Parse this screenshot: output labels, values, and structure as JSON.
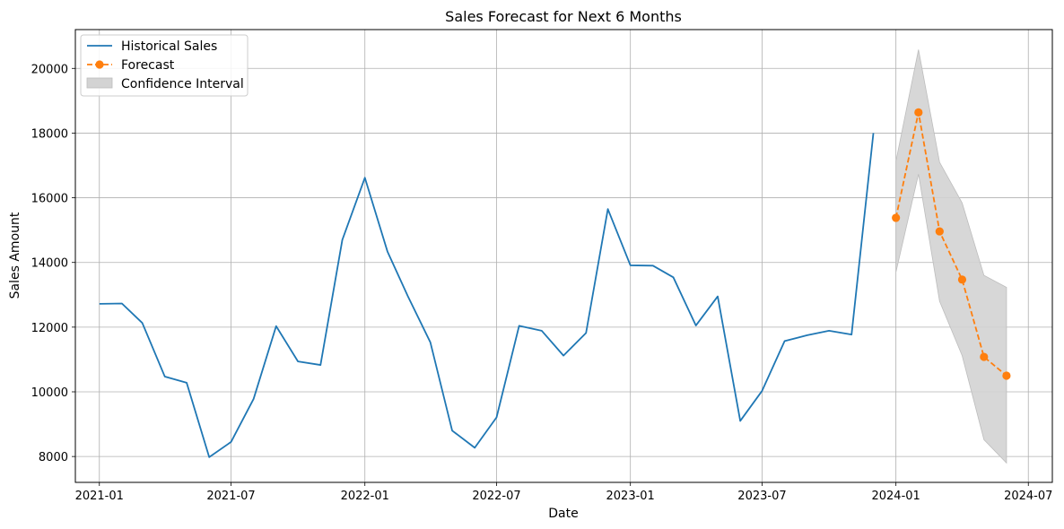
{
  "chart_data": {
    "type": "line",
    "title": "Sales Forecast for Next 6 Months",
    "xlabel": "Date",
    "ylabel": "Sales Amount",
    "ylim": [
      7200,
      21200
    ],
    "xlim": [
      "2020-11-29",
      "2024-08-03"
    ],
    "grid": true,
    "legend_position": "top-left",
    "x_ticks": [
      "2021-01",
      "2021-07",
      "2022-01",
      "2022-07",
      "2023-01",
      "2023-07",
      "2024-01",
      "2024-07"
    ],
    "y_ticks": [
      8000,
      10000,
      12000,
      14000,
      16000,
      18000,
      20000
    ],
    "series": [
      {
        "name": "Historical Sales",
        "color": "#1f77b4",
        "style": "solid",
        "x": [
          "2021-01-01",
          "2021-02-01",
          "2021-03-01",
          "2021-04-01",
          "2021-05-01",
          "2021-06-01",
          "2021-07-01",
          "2021-08-01",
          "2021-09-01",
          "2021-10-01",
          "2021-11-01",
          "2021-12-01",
          "2022-01-01",
          "2022-02-01",
          "2022-03-01",
          "2022-04-01",
          "2022-05-01",
          "2022-06-01",
          "2022-07-01",
          "2022-08-01",
          "2022-09-01",
          "2022-10-01",
          "2022-11-01",
          "2022-12-01",
          "2023-01-01",
          "2023-02-01",
          "2023-03-01",
          "2023-04-01",
          "2023-05-01",
          "2023-06-01",
          "2023-07-01",
          "2023-08-01",
          "2023-09-01",
          "2023-10-01",
          "2023-11-01",
          "2023-12-01"
        ],
        "values": [
          12720,
          12730,
          12130,
          10470,
          10280,
          7980,
          8450,
          9780,
          12030,
          10940,
          10830,
          14700,
          16620,
          14340,
          12960,
          11530,
          8800,
          8270,
          9210,
          12040,
          11890,
          11120,
          11820,
          15650,
          13910,
          13900,
          13540,
          12050,
          12950,
          9100,
          10030,
          11570,
          11750,
          11890,
          11770,
          18000
        ]
      },
      {
        "name": "Forecast",
        "color": "#ff7f0e",
        "style": "dashed",
        "marker": "circle",
        "x": [
          "2024-01-01",
          "2024-02-01",
          "2024-03-01",
          "2024-04-01",
          "2024-05-01",
          "2024-06-01"
        ],
        "values": [
          15380,
          18640,
          14960,
          13470,
          11080,
          10500
        ]
      }
    ],
    "confidence_interval": {
      "name": "Confidence Interval",
      "color": "#d3d3d3",
      "x": [
        "2024-01-01",
        "2024-02-01",
        "2024-03-01",
        "2024-04-01",
        "2024-05-01",
        "2024-06-01"
      ],
      "lower": [
        13700,
        16730,
        12800,
        11120,
        8520,
        7800
      ],
      "upper": [
        17130,
        20580,
        17100,
        15840,
        13600,
        13230
      ]
    }
  }
}
